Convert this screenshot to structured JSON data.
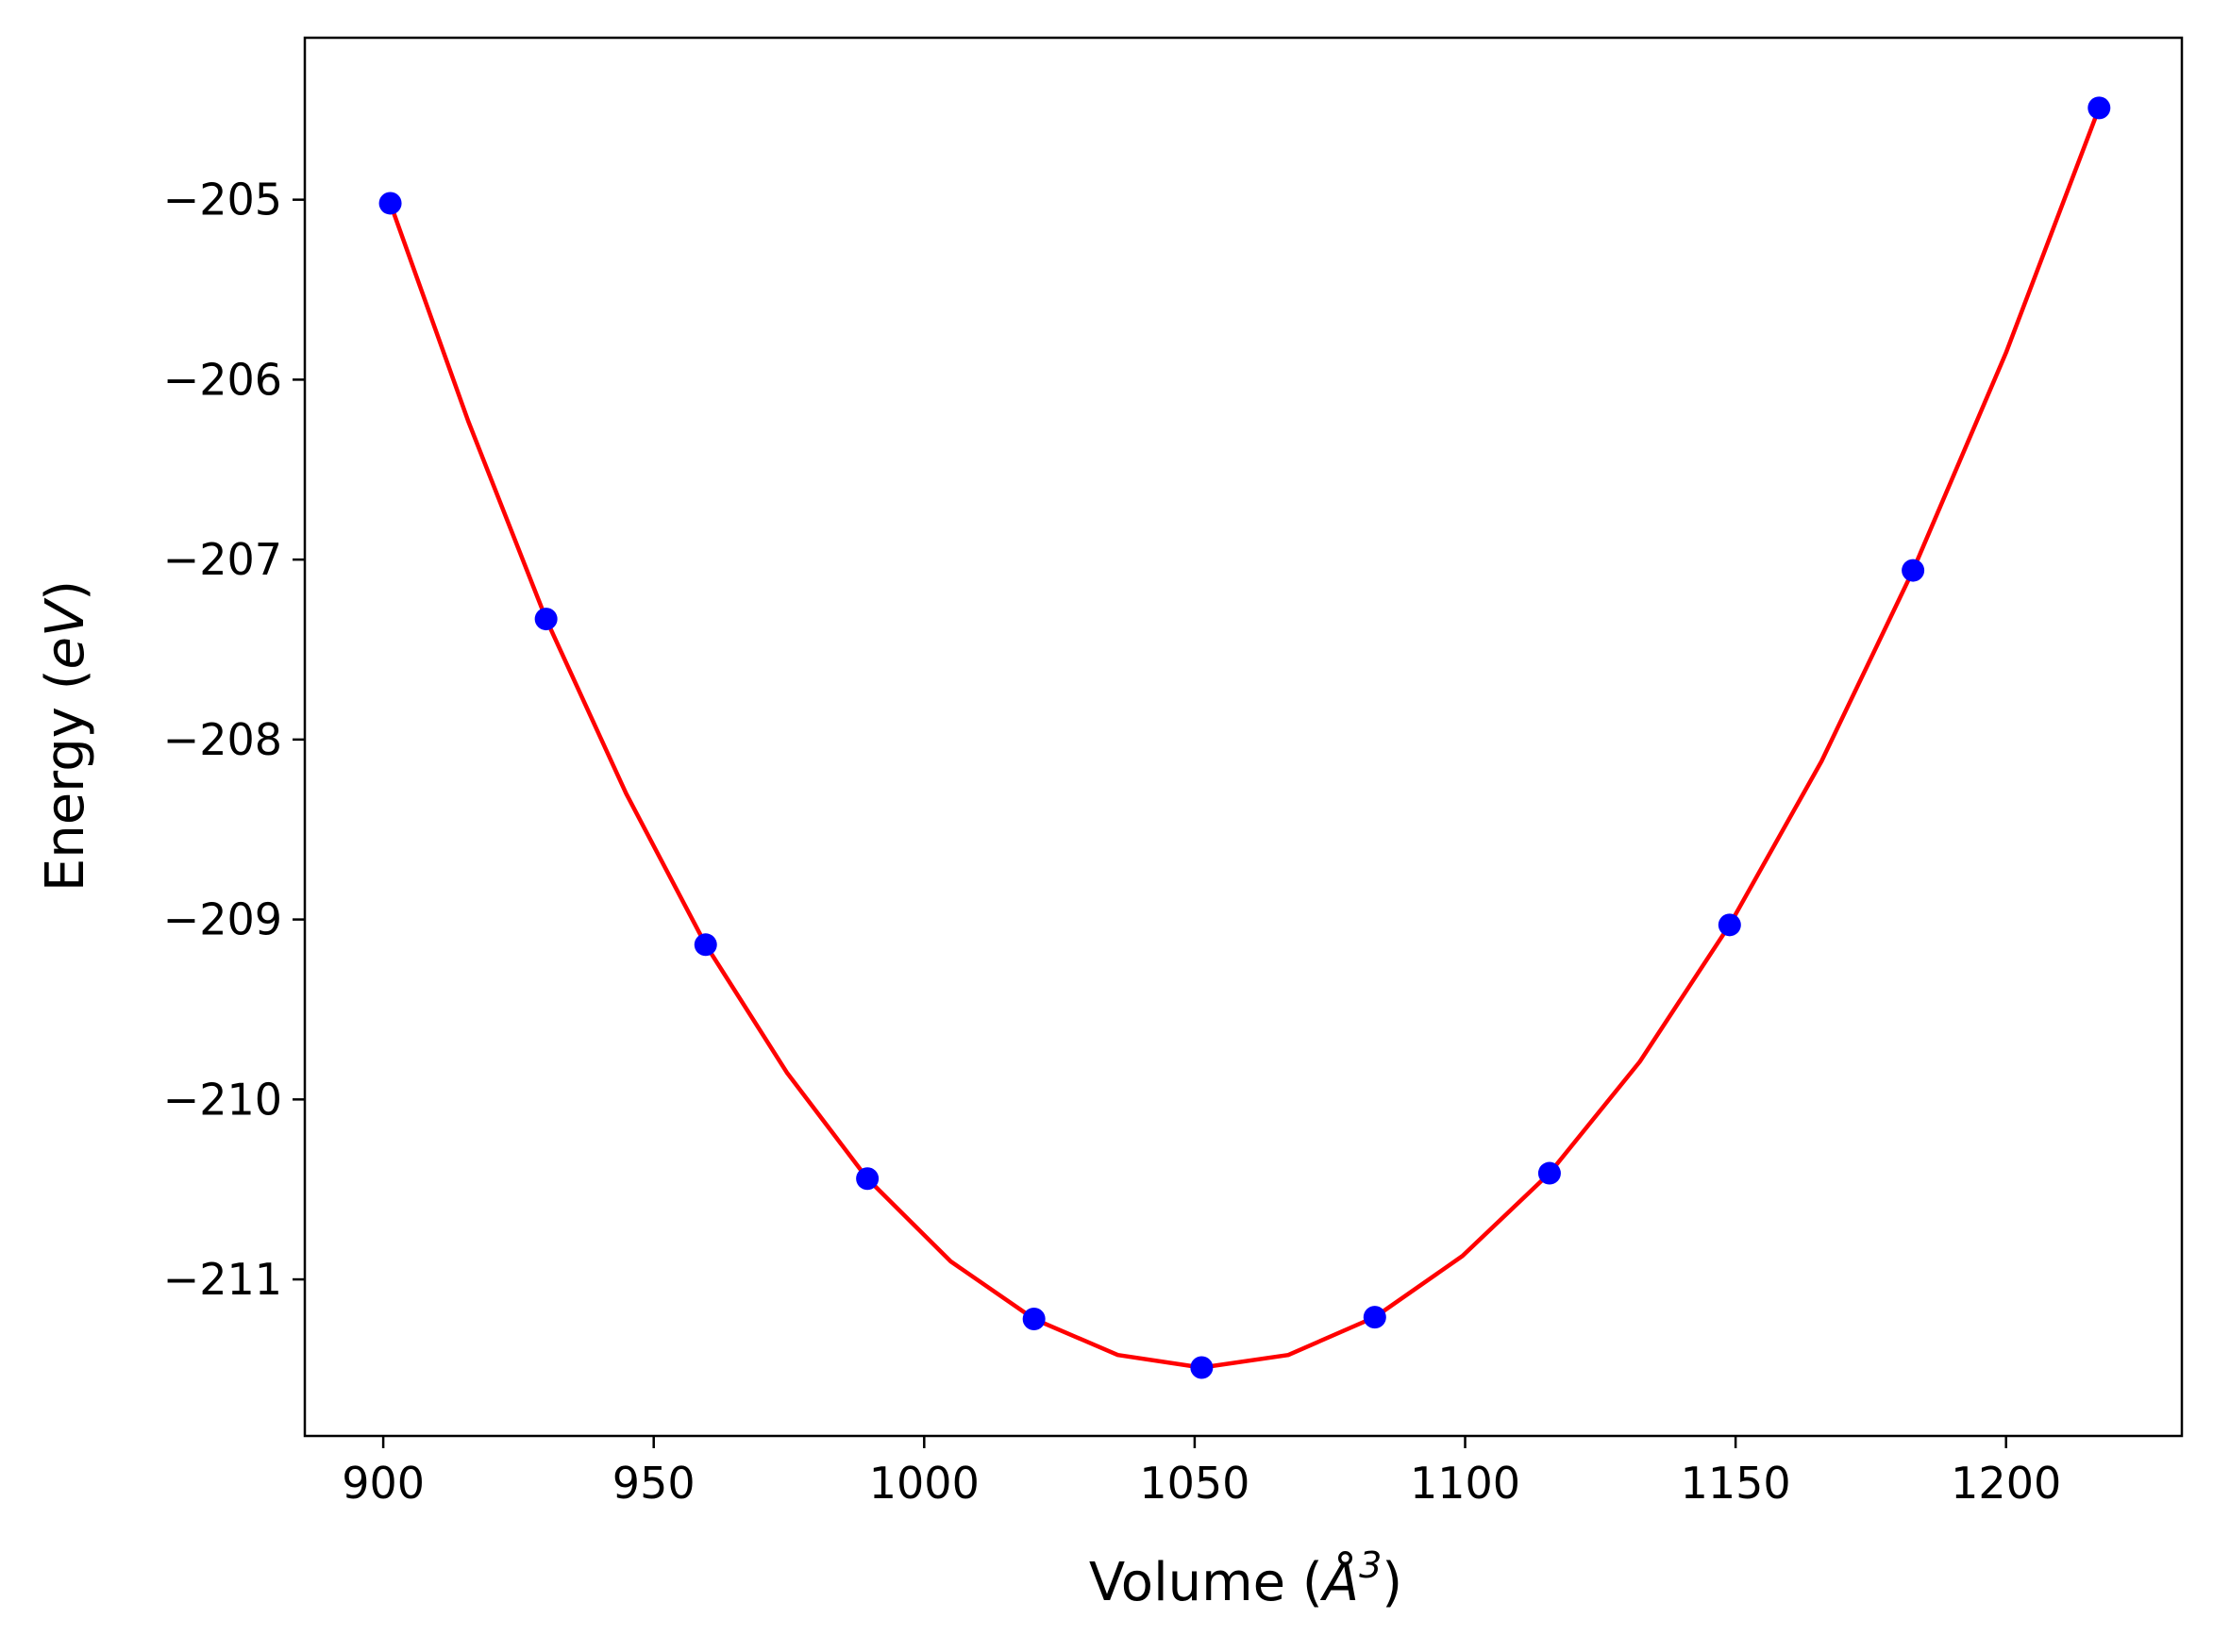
{
  "chart_data": {
    "type": "scatter",
    "title": "",
    "xlabel": "Volume (Å³)",
    "xlabel_parts": {
      "prefix": "Volume (",
      "unit": "Å",
      "exponent": "3",
      "suffix": ")"
    },
    "ylabel": "Energy (eV)",
    "ylabel_parts": {
      "prefix": "Energy (",
      "unit": "eV",
      "suffix": ")"
    },
    "xlim": [
      885.5,
      1232.5
    ],
    "ylim": [
      -211.87,
      -204.1
    ],
    "xticks": [
      900,
      950,
      1000,
      1050,
      1100,
      1150,
      1200
    ],
    "yticks": [
      -205,
      -206,
      -207,
      -208,
      -209,
      -210,
      -211
    ],
    "grid": false,
    "series": [
      {
        "kind": "points",
        "color": "#0000ff",
        "x": [
          901.3,
          930.1,
          959.6,
          989.5,
          1020.3,
          1051.3,
          1083.3,
          1115.6,
          1148.9,
          1182.8,
          1217.2
        ],
        "y": [
          -205.02,
          -207.33,
          -209.14,
          -210.44,
          -211.22,
          -211.49,
          -211.21,
          -210.41,
          -209.03,
          -207.06,
          -204.49
        ]
      },
      {
        "kind": "fit-curve",
        "color": "#ff0000",
        "x": [
          901.3,
          915.7,
          930.1,
          944.9,
          959.6,
          974.6,
          989.5,
          1004.9,
          1020.3,
          1035.8,
          1051.3,
          1067.3,
          1083.3,
          1099.5,
          1115.6,
          1132.3,
          1148.9,
          1165.9,
          1182.8,
          1200.0,
          1217.2
        ],
        "y": [
          -205.02,
          -206.23,
          -207.33,
          -208.3,
          -209.14,
          -209.85,
          -210.44,
          -210.9,
          -211.22,
          -211.42,
          -211.49,
          -211.42,
          -211.21,
          -210.87,
          -210.41,
          -209.79,
          -209.03,
          -208.12,
          -207.06,
          -205.85,
          -204.49
        ]
      }
    ]
  }
}
